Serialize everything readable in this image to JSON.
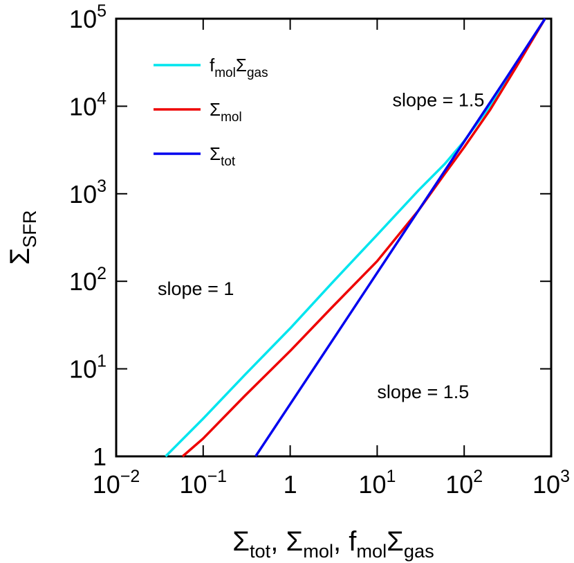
{
  "chart_data": {
    "type": "line",
    "x_scale": "log",
    "y_scale": "log",
    "xlim": [
      0.01,
      1000
    ],
    "ylim": [
      1,
      100000
    ],
    "grid": false,
    "legend_position": "top-left",
    "xlabel": {
      "main": "Σ",
      "sub": "tot",
      "sep": ", ",
      "main2": "Σ",
      "sub2": "mol",
      "sep2": ", ",
      "pre3": "f",
      "sub3a": "mol",
      "main3": "Σ",
      "sub3b": "gas"
    },
    "ylabel": {
      "main": "Σ",
      "sub": "SFR"
    },
    "x_ticks": [
      {
        "value": 0.01,
        "base": "10",
        "exp": "−2"
      },
      {
        "value": 0.1,
        "base": "10",
        "exp": "−1"
      },
      {
        "value": 1,
        "base": "1",
        "exp": ""
      },
      {
        "value": 10,
        "base": "10",
        "exp": "1"
      },
      {
        "value": 100,
        "base": "10",
        "exp": "2"
      },
      {
        "value": 1000,
        "base": "10",
        "exp": "3"
      }
    ],
    "y_ticks": [
      {
        "value": 1,
        "base": "1",
        "exp": ""
      },
      {
        "value": 10,
        "base": "10",
        "exp": "1"
      },
      {
        "value": 100,
        "base": "10",
        "exp": "2"
      },
      {
        "value": 1000,
        "base": "10",
        "exp": "3"
      },
      {
        "value": 10000,
        "base": "10",
        "exp": "4"
      },
      {
        "value": 100000,
        "base": "10",
        "exp": "5"
      }
    ],
    "series": [
      {
        "legend": {
          "pre": "f",
          "sub": "mol",
          "main": "Σ",
          "sub2": "gas"
        },
        "color": "#00e5ee",
        "x": [
          0.037,
          0.1,
          0.3,
          1,
          3,
          10,
          30,
          60,
          100,
          200,
          400,
          850
        ],
        "y": [
          1,
          2.7,
          8.5,
          29,
          95,
          340,
          1100,
          2200,
          4000,
          10200,
          29000,
          100000
        ]
      },
      {
        "legend": {
          "pre": "",
          "sub": "",
          "main": "Σ",
          "sub2": "mol"
        },
        "color": "#ee0000",
        "x": [
          0.058,
          0.1,
          0.3,
          1,
          3,
          10,
          30,
          60,
          100,
          200,
          400,
          850
        ],
        "y": [
          1,
          1.6,
          4.9,
          16,
          50,
          170,
          650,
          1700,
          3400,
          9200,
          28500,
          100000
        ]
      },
      {
        "legend": {
          "pre": "",
          "sub": "",
          "main": "Σ",
          "sub2": "tot"
        },
        "color": "#0000ee",
        "x": [
          0.4,
          1,
          3,
          10,
          30,
          100,
          300,
          850
        ],
        "y": [
          1,
          3.95,
          20.5,
          125,
          650,
          3950,
          20500,
          100000
        ]
      }
    ],
    "annotations": [
      {
        "text": "slope = 1.5",
        "x": 15,
        "y": 10000
      },
      {
        "text": "slope = 1",
        "x": 0.03,
        "y": 70
      },
      {
        "text": "slope = 1.5",
        "x": 10,
        "y": 4.6
      }
    ]
  }
}
